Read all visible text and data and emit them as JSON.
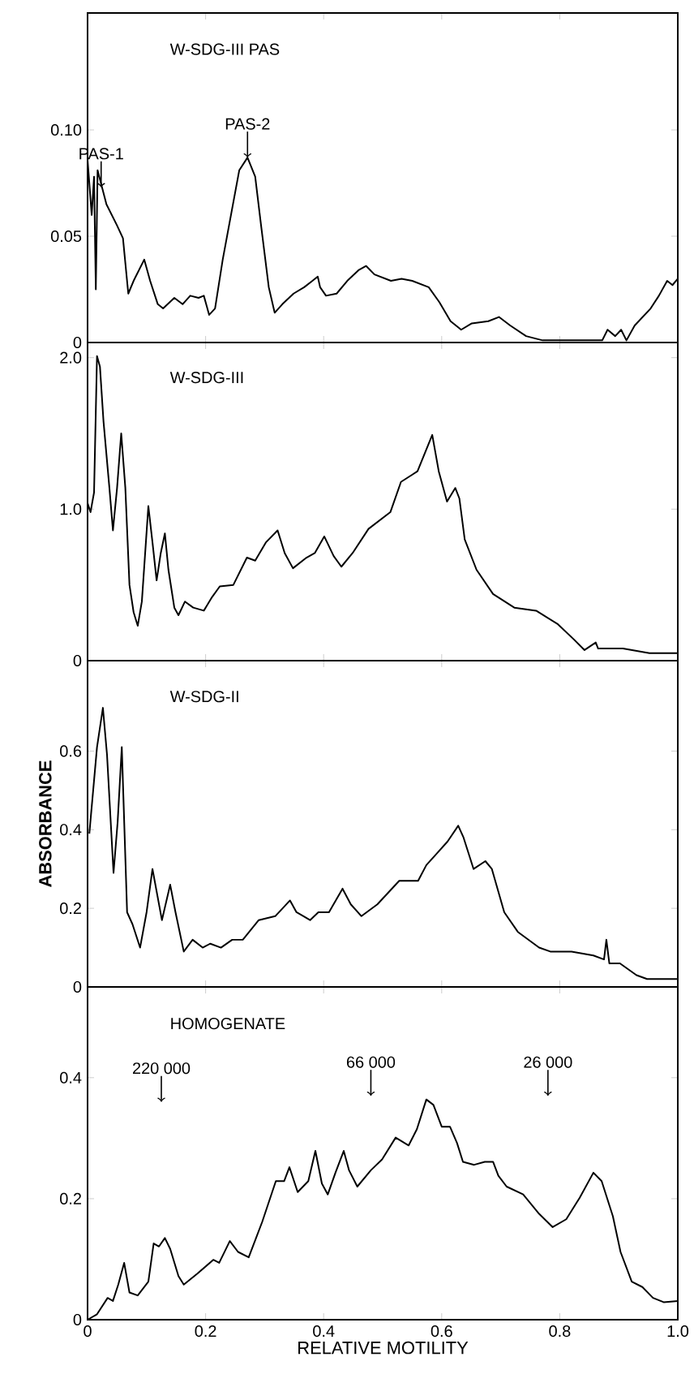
{
  "chart_data": [
    {
      "type": "line",
      "title": "W-SDG-III    PAS",
      "color": "#000000",
      "xlim": [
        0,
        1
      ],
      "xticks": [
        0,
        0.2,
        0.4,
        0.6,
        0.8,
        1
      ],
      "ylim": [
        0,
        0.155
      ],
      "yticks": [
        0,
        0.05,
        {
          "value": 0.1,
          "label": "0.10"
        }
      ],
      "tick_labels": "y",
      "annotations": [
        {
          "text": "PAS-1",
          "x": 0.023,
          "y": 0.073
        },
        {
          "text": "PAS-2",
          "x": 0.271,
          "y": 0.087
        }
      ],
      "x": [
        0,
        0.007,
        0.011,
        0.014,
        0.017,
        0.032,
        0.05,
        0.06,
        0.069,
        0.078,
        0.096,
        0.106,
        0.119,
        0.128,
        0.147,
        0.161,
        0.174,
        0.188,
        0.197,
        0.206,
        0.216,
        0.229,
        0.243,
        0.257,
        0.271,
        0.284,
        0.294,
        0.307,
        0.317,
        0.33,
        0.349,
        0.367,
        0.381,
        0.39,
        0.394,
        0.404,
        0.422,
        0.44,
        0.459,
        0.472,
        0.486,
        0.514,
        0.532,
        0.55,
        0.578,
        0.596,
        0.615,
        0.633,
        0.651,
        0.679,
        0.697,
        0.716,
        0.743,
        0.771,
        0.817,
        0.872,
        0.881,
        0.894,
        0.904,
        0.913,
        0.927,
        0.954,
        0.968,
        0.982,
        0.991,
        1.0
      ],
      "values": [
        0.086,
        0.06,
        0.078,
        0.025,
        0.081,
        0.065,
        0.055,
        0.049,
        0.023,
        0.029,
        0.039,
        0.029,
        0.018,
        0.016,
        0.021,
        0.018,
        0.022,
        0.021,
        0.022,
        0.013,
        0.016,
        0.039,
        0.06,
        0.081,
        0.087,
        0.078,
        0.055,
        0.026,
        0.014,
        0.018,
        0.023,
        0.026,
        0.029,
        0.031,
        0.026,
        0.022,
        0.023,
        0.029,
        0.034,
        0.036,
        0.032,
        0.029,
        0.03,
        0.029,
        0.026,
        0.019,
        0.01,
        0.006,
        0.009,
        0.01,
        0.012,
        0.008,
        0.003,
        0.001,
        0.001,
        0.001,
        0.006,
        0.003,
        0.006,
        0.001,
        0.008,
        0.016,
        0.022,
        0.029,
        0.027,
        0.03
      ]
    },
    {
      "type": "line",
      "title": "W-SDG-III",
      "color": "#000000",
      "xlim": [
        0,
        1
      ],
      "xticks": [
        0,
        0.2,
        0.4,
        0.6,
        0.8,
        1
      ],
      "ylim": [
        0,
        2.1
      ],
      "yticks": [
        0,
        {
          "value": 1,
          "label": "1.0"
        },
        {
          "value": 2,
          "label": "2.0"
        }
      ],
      "tick_labels": "y",
      "x": [
        0,
        0.005,
        0.011,
        0.016,
        0.021,
        0.027,
        0.037,
        0.043,
        0.05,
        0.057,
        0.064,
        0.071,
        0.078,
        0.085,
        0.092,
        0.103,
        0.11,
        0.117,
        0.124,
        0.131,
        0.137,
        0.147,
        0.154,
        0.165,
        0.179,
        0.197,
        0.211,
        0.224,
        0.247,
        0.27,
        0.284,
        0.302,
        0.322,
        0.334,
        0.348,
        0.371,
        0.385,
        0.401,
        0.417,
        0.43,
        0.449,
        0.476,
        0.513,
        0.531,
        0.559,
        0.584,
        0.595,
        0.609,
        0.623,
        0.63,
        0.639,
        0.659,
        0.687,
        0.723,
        0.76,
        0.797,
        0.824,
        0.842,
        0.861,
        0.865,
        0.907,
        0.952,
        0.971,
        1.0
      ],
      "values": [
        1.04,
        0.98,
        1.11,
        2.01,
        1.94,
        1.58,
        1.14,
        0.86,
        1.14,
        1.5,
        1.14,
        0.5,
        0.32,
        0.23,
        0.39,
        1.02,
        0.78,
        0.53,
        0.71,
        0.84,
        0.6,
        0.35,
        0.3,
        0.39,
        0.35,
        0.33,
        0.42,
        0.49,
        0.5,
        0.68,
        0.66,
        0.78,
        0.86,
        0.71,
        0.61,
        0.68,
        0.71,
        0.82,
        0.69,
        0.62,
        0.71,
        0.87,
        0.98,
        1.18,
        1.25,
        1.49,
        1.25,
        1.05,
        1.14,
        1.07,
        0.8,
        0.6,
        0.44,
        0.35,
        0.33,
        0.24,
        0.14,
        0.07,
        0.12,
        0.08,
        0.08,
        0.05,
        0.05,
        0.05
      ]
    },
    {
      "type": "line",
      "title": "W-SDG-II",
      "ylabel": "ABSORBANCE",
      "color": "#000000",
      "xlim": [
        0,
        1
      ],
      "xticks": [
        0,
        0.2,
        0.4,
        0.6,
        0.8,
        1
      ],
      "ylim": [
        0,
        0.83
      ],
      "yticks": [
        0,
        0.2,
        0.4,
        0.6
      ],
      "tick_labels": "y",
      "x": [
        0.003,
        0.016,
        0.026,
        0.033,
        0.044,
        0.051,
        0.058,
        0.067,
        0.076,
        0.089,
        0.1,
        0.11,
        0.126,
        0.14,
        0.149,
        0.163,
        0.178,
        0.195,
        0.208,
        0.226,
        0.245,
        0.263,
        0.29,
        0.318,
        0.343,
        0.354,
        0.377,
        0.391,
        0.409,
        0.432,
        0.446,
        0.464,
        0.491,
        0.528,
        0.56,
        0.574,
        0.592,
        0.61,
        0.628,
        0.637,
        0.654,
        0.674,
        0.685,
        0.706,
        0.729,
        0.765,
        0.784,
        0.82,
        0.857,
        0.875,
        0.879,
        0.884,
        0.902,
        0.93,
        0.948,
        1.0
      ],
      "values": [
        0.39,
        0.61,
        0.71,
        0.59,
        0.29,
        0.42,
        0.61,
        0.19,
        0.16,
        0.1,
        0.19,
        0.3,
        0.17,
        0.26,
        0.19,
        0.09,
        0.12,
        0.1,
        0.11,
        0.1,
        0.12,
        0.12,
        0.17,
        0.18,
        0.22,
        0.19,
        0.17,
        0.19,
        0.19,
        0.25,
        0.21,
        0.18,
        0.21,
        0.27,
        0.27,
        0.31,
        0.34,
        0.37,
        0.41,
        0.38,
        0.3,
        0.32,
        0.3,
        0.19,
        0.14,
        0.1,
        0.09,
        0.09,
        0.08,
        0.07,
        0.12,
        0.06,
        0.06,
        0.03,
        0.02,
        0.02
      ]
    },
    {
      "type": "line",
      "title": "HOMOGENATE",
      "xlabel": "RELATIVE MOTILITY",
      "color": "#000000",
      "xlim": [
        0,
        1
      ],
      "xticks": [
        0,
        0.2,
        0.4,
        0.6,
        0.8,
        {
          "value": 1,
          "label": "1.0"
        }
      ],
      "ylim": [
        0,
        0.55
      ],
      "yticks": [
        0,
        0.2,
        0.4
      ],
      "annotations": [
        {
          "text": "220 000",
          "x": 0.125,
          "y": 0.36
        },
        {
          "text": "66 000",
          "x": 0.48,
          "y": 0.37
        },
        {
          "text": "26 000",
          "x": 0.78,
          "y": 0.37
        }
      ],
      "x": [
        0,
        0.016,
        0.034,
        0.043,
        0.052,
        0.062,
        0.071,
        0.085,
        0.103,
        0.112,
        0.121,
        0.131,
        0.14,
        0.154,
        0.163,
        0.186,
        0.213,
        0.223,
        0.241,
        0.255,
        0.273,
        0.296,
        0.319,
        0.333,
        0.342,
        0.356,
        0.374,
        0.386,
        0.397,
        0.407,
        0.42,
        0.434,
        0.443,
        0.457,
        0.48,
        0.499,
        0.522,
        0.544,
        0.558,
        0.574,
        0.586,
        0.6,
        0.614,
        0.626,
        0.636,
        0.655,
        0.673,
        0.687,
        0.696,
        0.71,
        0.738,
        0.765,
        0.788,
        0.811,
        0.834,
        0.857,
        0.871,
        0.89,
        0.903,
        0.922,
        0.94,
        0.958,
        0.976,
        1.0
      ],
      "values": [
        0,
        0.009,
        0.036,
        0.031,
        0.058,
        0.094,
        0.045,
        0.04,
        0.063,
        0.126,
        0.121,
        0.135,
        0.117,
        0.072,
        0.058,
        0.076,
        0.099,
        0.094,
        0.13,
        0.112,
        0.103,
        0.162,
        0.229,
        0.229,
        0.252,
        0.211,
        0.229,
        0.279,
        0.225,
        0.207,
        0.243,
        0.279,
        0.247,
        0.22,
        0.247,
        0.265,
        0.301,
        0.288,
        0.315,
        0.364,
        0.355,
        0.319,
        0.319,
        0.292,
        0.261,
        0.256,
        0.261,
        0.261,
        0.238,
        0.22,
        0.207,
        0.175,
        0.153,
        0.166,
        0.202,
        0.243,
        0.229,
        0.171,
        0.112,
        0.063,
        0.054,
        0.036,
        0.029,
        0.031
      ]
    }
  ]
}
